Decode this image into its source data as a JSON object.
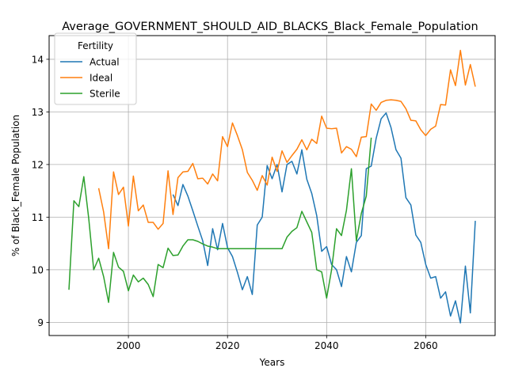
{
  "chart_data": {
    "type": "line",
    "title": "Average_GOVERNMENT_SHOULD_AID_BLACKS_Black_Female_Population",
    "xlabel": "Years",
    "ylabel": "% of Black_Female Population",
    "xlim": [
      1984,
      2074
    ],
    "ylim": [
      8.75,
      14.45
    ],
    "xticks": [
      2000,
      2020,
      2040,
      2060
    ],
    "yticks": [
      9,
      10,
      11,
      12,
      13,
      14
    ],
    "grid": true,
    "legend": {
      "title": "Fertility",
      "placement": "upper-left"
    },
    "series": [
      {
        "name": "Actual",
        "color": "#1f77b4",
        "points": [
          [
            2009,
            11.43
          ],
          [
            2010,
            11.22
          ],
          [
            2011,
            11.62
          ],
          [
            2012,
            11.4
          ],
          [
            2013,
            11.12
          ],
          [
            2014,
            10.83
          ],
          [
            2015,
            10.55
          ],
          [
            2016,
            10.08
          ],
          [
            2017,
            10.78
          ],
          [
            2018,
            10.38
          ],
          [
            2019,
            10.88
          ],
          [
            2020,
            10.42
          ],
          [
            2021,
            10.25
          ],
          [
            2022,
            9.95
          ],
          [
            2023,
            9.62
          ],
          [
            2024,
            9.87
          ],
          [
            2025,
            9.53
          ],
          [
            2026,
            10.85
          ],
          [
            2027,
            11.0
          ],
          [
            2028,
            11.98
          ],
          [
            2029,
            11.73
          ],
          [
            2030,
            12.0
          ],
          [
            2031,
            11.48
          ],
          [
            2032,
            12.0
          ],
          [
            2033,
            12.06
          ],
          [
            2034,
            11.82
          ],
          [
            2035,
            12.28
          ],
          [
            2036,
            11.72
          ],
          [
            2037,
            11.45
          ],
          [
            2038,
            11.03
          ],
          [
            2039,
            10.35
          ],
          [
            2040,
            10.44
          ],
          [
            2041,
            10.1
          ],
          [
            2042,
            10.0
          ],
          [
            2043,
            9.68
          ],
          [
            2044,
            10.25
          ],
          [
            2045,
            9.96
          ],
          [
            2046,
            10.52
          ],
          [
            2047,
            10.65
          ],
          [
            2048,
            11.92
          ],
          [
            2049,
            11.97
          ],
          [
            2050,
            12.5
          ],
          [
            2051,
            12.87
          ],
          [
            2052,
            12.98
          ],
          [
            2053,
            12.7
          ],
          [
            2054,
            12.28
          ],
          [
            2055,
            12.12
          ],
          [
            2056,
            11.37
          ],
          [
            2057,
            11.23
          ],
          [
            2058,
            10.66
          ],
          [
            2059,
            10.52
          ],
          [
            2060,
            10.1
          ],
          [
            2061,
            9.84
          ],
          [
            2062,
            9.87
          ],
          [
            2063,
            9.46
          ],
          [
            2064,
            9.58
          ],
          [
            2065,
            9.12
          ],
          [
            2066,
            9.41
          ],
          [
            2067,
            8.99
          ],
          [
            2068,
            10.07
          ],
          [
            2069,
            9.18
          ],
          [
            2070,
            10.93
          ]
        ]
      },
      {
        "name": "Ideal",
        "color": "#ff7f0e",
        "points": [
          [
            1994,
            11.55
          ],
          [
            1995,
            11.1
          ],
          [
            1996,
            10.4
          ],
          [
            1997,
            11.86
          ],
          [
            1998,
            11.43
          ],
          [
            1999,
            11.57
          ],
          [
            2000,
            10.83
          ],
          [
            2001,
            11.78
          ],
          [
            2002,
            11.12
          ],
          [
            2003,
            11.23
          ],
          [
            2004,
            10.9
          ],
          [
            2005,
            10.9
          ],
          [
            2006,
            10.77
          ],
          [
            2007,
            10.88
          ],
          [
            2008,
            11.88
          ],
          [
            2009,
            11.05
          ],
          [
            2010,
            11.75
          ],
          [
            2011,
            11.86
          ],
          [
            2012,
            11.87
          ],
          [
            2013,
            12.02
          ],
          [
            2014,
            11.73
          ],
          [
            2015,
            11.74
          ],
          [
            2016,
            11.63
          ],
          [
            2017,
            11.82
          ],
          [
            2018,
            11.69
          ],
          [
            2019,
            12.53
          ],
          [
            2020,
            12.34
          ],
          [
            2021,
            12.79
          ],
          [
            2022,
            12.55
          ],
          [
            2023,
            12.28
          ],
          [
            2024,
            11.85
          ],
          [
            2025,
            11.7
          ],
          [
            2026,
            11.51
          ],
          [
            2027,
            11.79
          ],
          [
            2028,
            11.61
          ],
          [
            2029,
            12.14
          ],
          [
            2030,
            11.87
          ],
          [
            2031,
            12.26
          ],
          [
            2032,
            12.04
          ],
          [
            2033,
            12.17
          ],
          [
            2034,
            12.29
          ],
          [
            2035,
            12.47
          ],
          [
            2036,
            12.28
          ],
          [
            2037,
            12.48
          ],
          [
            2038,
            12.4
          ],
          [
            2039,
            12.92
          ],
          [
            2040,
            12.69
          ],
          [
            2041,
            12.68
          ],
          [
            2042,
            12.69
          ],
          [
            2043,
            12.22
          ],
          [
            2044,
            12.34
          ],
          [
            2045,
            12.29
          ],
          [
            2046,
            12.15
          ],
          [
            2047,
            12.52
          ],
          [
            2048,
            12.53
          ],
          [
            2049,
            13.15
          ],
          [
            2050,
            13.03
          ],
          [
            2051,
            13.18
          ],
          [
            2052,
            13.22
          ],
          [
            2053,
            13.23
          ],
          [
            2054,
            13.22
          ],
          [
            2055,
            13.2
          ],
          [
            2056,
            13.06
          ],
          [
            2057,
            12.84
          ],
          [
            2058,
            12.83
          ],
          [
            2059,
            12.66
          ],
          [
            2060,
            12.55
          ],
          [
            2061,
            12.67
          ],
          [
            2062,
            12.73
          ],
          [
            2063,
            13.14
          ],
          [
            2064,
            13.13
          ],
          [
            2065,
            13.8
          ],
          [
            2066,
            13.5
          ],
          [
            2067,
            14.17
          ],
          [
            2068,
            13.51
          ],
          [
            2069,
            13.9
          ],
          [
            2070,
            13.48
          ]
        ]
      },
      {
        "name": "Sterile",
        "color": "#2ca02c",
        "points": [
          [
            1988,
            9.62
          ],
          [
            1989,
            11.31
          ],
          [
            1990,
            11.2
          ],
          [
            1991,
            11.77
          ],
          [
            1992,
            10.97
          ],
          [
            1993,
            10.0
          ],
          [
            1994,
            10.22
          ],
          [
            1995,
            9.87
          ],
          [
            1996,
            9.38
          ],
          [
            1997,
            10.33
          ],
          [
            1998,
            10.05
          ],
          [
            1999,
            9.97
          ],
          [
            2000,
            9.6
          ],
          [
            2001,
            9.9
          ],
          [
            2002,
            9.77
          ],
          [
            2003,
            9.84
          ],
          [
            2004,
            9.72
          ],
          [
            2005,
            9.49
          ],
          [
            2006,
            10.1
          ],
          [
            2007,
            10.04
          ],
          [
            2008,
            10.41
          ],
          [
            2009,
            10.27
          ],
          [
            2010,
            10.28
          ],
          [
            2011,
            10.45
          ],
          [
            2012,
            10.57
          ],
          [
            2013,
            10.57
          ],
          [
            2014,
            10.54
          ],
          [
            2015,
            10.49
          ],
          [
            2016,
            10.45
          ],
          [
            2017,
            10.43
          ],
          [
            2018,
            10.4
          ],
          [
            2019,
            10.4
          ],
          [
            2020,
            10.4
          ],
          [
            2021,
            10.4
          ],
          [
            2022,
            10.4
          ],
          [
            2023,
            10.4
          ],
          [
            2024,
            10.4
          ],
          [
            2025,
            10.4
          ],
          [
            2026,
            10.4
          ],
          [
            2027,
            10.4
          ],
          [
            2028,
            10.4
          ],
          [
            2029,
            10.4
          ],
          [
            2030,
            10.4
          ],
          [
            2031,
            10.4
          ],
          [
            2032,
            10.62
          ],
          [
            2033,
            10.73
          ],
          [
            2034,
            10.8
          ],
          [
            2035,
            11.11
          ],
          [
            2036,
            10.91
          ],
          [
            2037,
            10.71
          ],
          [
            2038,
            10.0
          ],
          [
            2039,
            9.96
          ],
          [
            2040,
            9.46
          ],
          [
            2041,
            10.0
          ],
          [
            2042,
            10.78
          ],
          [
            2043,
            10.65
          ],
          [
            2044,
            11.13
          ],
          [
            2045,
            11.92
          ],
          [
            2046,
            10.55
          ],
          [
            2047,
            11.07
          ],
          [
            2048,
            11.4
          ],
          [
            2049,
            12.51
          ]
        ]
      }
    ]
  }
}
